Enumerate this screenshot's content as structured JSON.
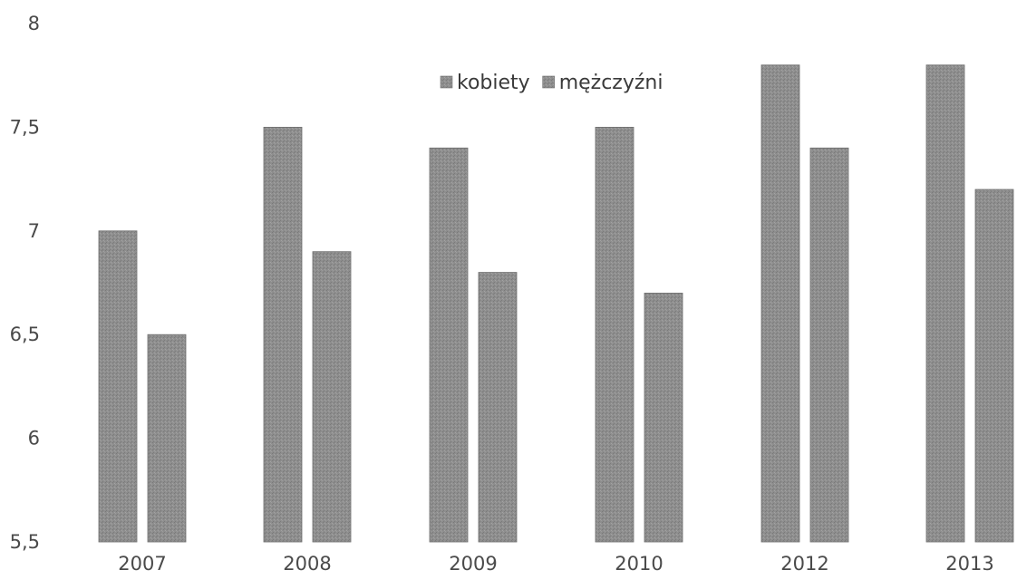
{
  "chart_data": {
    "type": "bar",
    "categories": [
      "2007",
      "2008",
      "2009",
      "2010",
      "2012",
      "2013"
    ],
    "series": [
      {
        "name": "kobiety",
        "values": [
          7.0,
          7.5,
          7.4,
          7.5,
          7.8,
          7.8
        ],
        "color": "#8c8c8c"
      },
      {
        "name": "mężczyźni",
        "values": [
          6.5,
          6.9,
          6.8,
          6.7,
          7.4,
          7.2
        ],
        "color": "#8c8c8c"
      }
    ],
    "yticks": [
      "5,5",
      "6",
      "6,5",
      "7",
      "7,5",
      "8"
    ],
    "ylim": [
      5.5,
      8
    ],
    "grid": false,
    "legend_position": "top-center",
    "title": "",
    "xlabel": "",
    "ylabel": ""
  }
}
